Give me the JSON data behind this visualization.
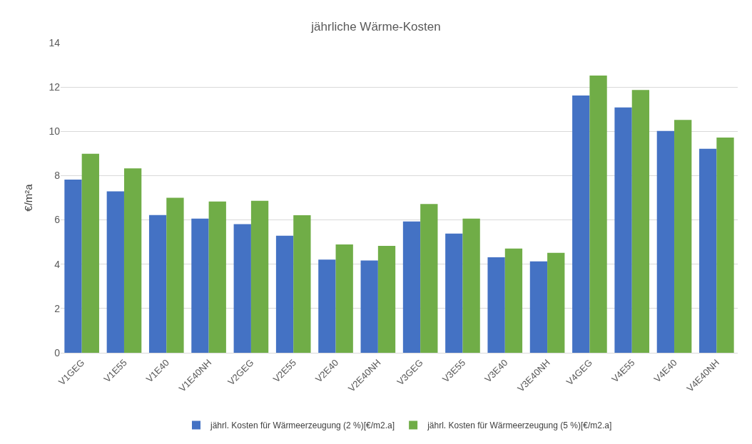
{
  "chart_data": {
    "type": "bar",
    "title": "jährliche Wärme-Kosten",
    "ylabel": "€/m²a",
    "categories": [
      "V1GEG",
      "V1E55",
      "V1E40",
      "V1E40NH",
      "V2GEG",
      "V2E55",
      "V2E40",
      "V2E40NH",
      "V3GEG",
      "V3E55",
      "V3E40",
      "V3E40NH",
      "V4GEG",
      "V4E55",
      "V4E40",
      "V4E40NH"
    ],
    "series": [
      {
        "name": "jährl. Kosten für Wärmeerzeugung (2 %)[€/m2.a]",
        "color": "#4472c4",
        "values": [
          7.82,
          7.29,
          6.22,
          6.06,
          5.81,
          5.29,
          4.21,
          4.17,
          5.93,
          5.38,
          4.31,
          4.13,
          11.62,
          11.08,
          10.02,
          9.21
        ]
      },
      {
        "name": "jährl. Kosten für Wärmeerzeugung (5 %)[€/m2.a]",
        "color": "#70ad47",
        "values": [
          8.99,
          8.33,
          7.0,
          6.83,
          6.86,
          6.21,
          4.89,
          4.83,
          6.72,
          6.06,
          4.71,
          4.51,
          12.52,
          11.87,
          10.52,
          9.72
        ]
      }
    ],
    "ylim": [
      0,
      14
    ],
    "yticks": [
      0,
      2,
      4,
      6,
      8,
      10,
      12,
      14
    ],
    "grid": "y",
    "legend": "bottom"
  }
}
